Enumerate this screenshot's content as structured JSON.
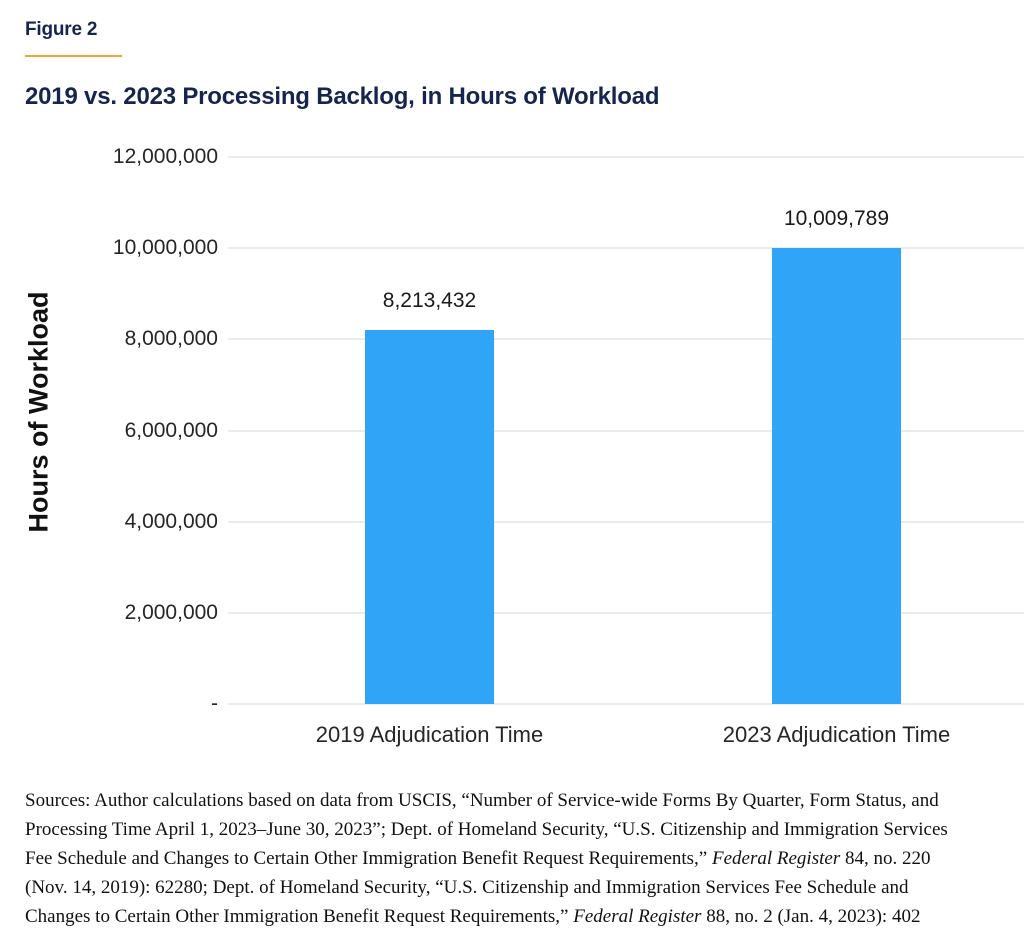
{
  "figure_label": "Figure 2",
  "colors": {
    "accent_navy": "#16254F",
    "underline_orange": "#F6A433",
    "bar_blue": "#30A4F7",
    "gridline_gray": "#EBEBEB",
    "label_black": "#1A1A1A"
  },
  "chart_data": {
    "type": "bar",
    "title": "2019 vs. 2023 Processing Backlog, in Hours of Workload",
    "xlabel": "",
    "ylabel": "Hours of Workload",
    "ylim": [
      0,
      12000000
    ],
    "ytick_interval": 2000000,
    "grid": true,
    "legend_position": "none",
    "yticks": [
      {
        "value": 12000000,
        "label": "12,000,000"
      },
      {
        "value": 10000000,
        "label": "10,000,000"
      },
      {
        "value": 8000000,
        "label": "8,000,000"
      },
      {
        "value": 6000000,
        "label": "6,000,000"
      },
      {
        "value": 4000000,
        "label": "4,000,000"
      },
      {
        "value": 2000000,
        "label": "2,000,000"
      },
      {
        "value": 0,
        "label": "-"
      }
    ],
    "categories": [
      "2019 Adjudication Time",
      "2023 Adjudication Time"
    ],
    "values": [
      8213432,
      10009789
    ],
    "value_labels": [
      "8,213,432",
      "10,009,789"
    ]
  },
  "sources": {
    "lines": [
      [
        {
          "text": "Sources: Author calculations based on data from USCIS, “Number of Service-wide Forms By Quarter, Form Status, and"
        }
      ],
      [
        {
          "text": "Processing Time April 1, 2023–June 30, 2023”; Dept. of Homeland Security, “U.S. Citizenship and Immigration Services"
        }
      ],
      [
        {
          "text": "Fee Schedule and Changes to Certain Other Immigration Benefit Request Requirements,” "
        },
        {
          "text": "Federal Register",
          "italic": true
        },
        {
          "text": " 84, no. 220"
        }
      ],
      [
        {
          "text": "(Nov. 14, 2019): 62280; Dept. of Homeland Security, “U.S. Citizenship and Immigration Services Fee Schedule and"
        }
      ],
      [
        {
          "text": "Changes to Certain Other Immigration Benefit Request Requirements,” "
        },
        {
          "text": "Federal Register",
          "italic": true
        },
        {
          "text": " 88, no. 2 (Jan. 4, 2023): 402"
        }
      ]
    ]
  }
}
